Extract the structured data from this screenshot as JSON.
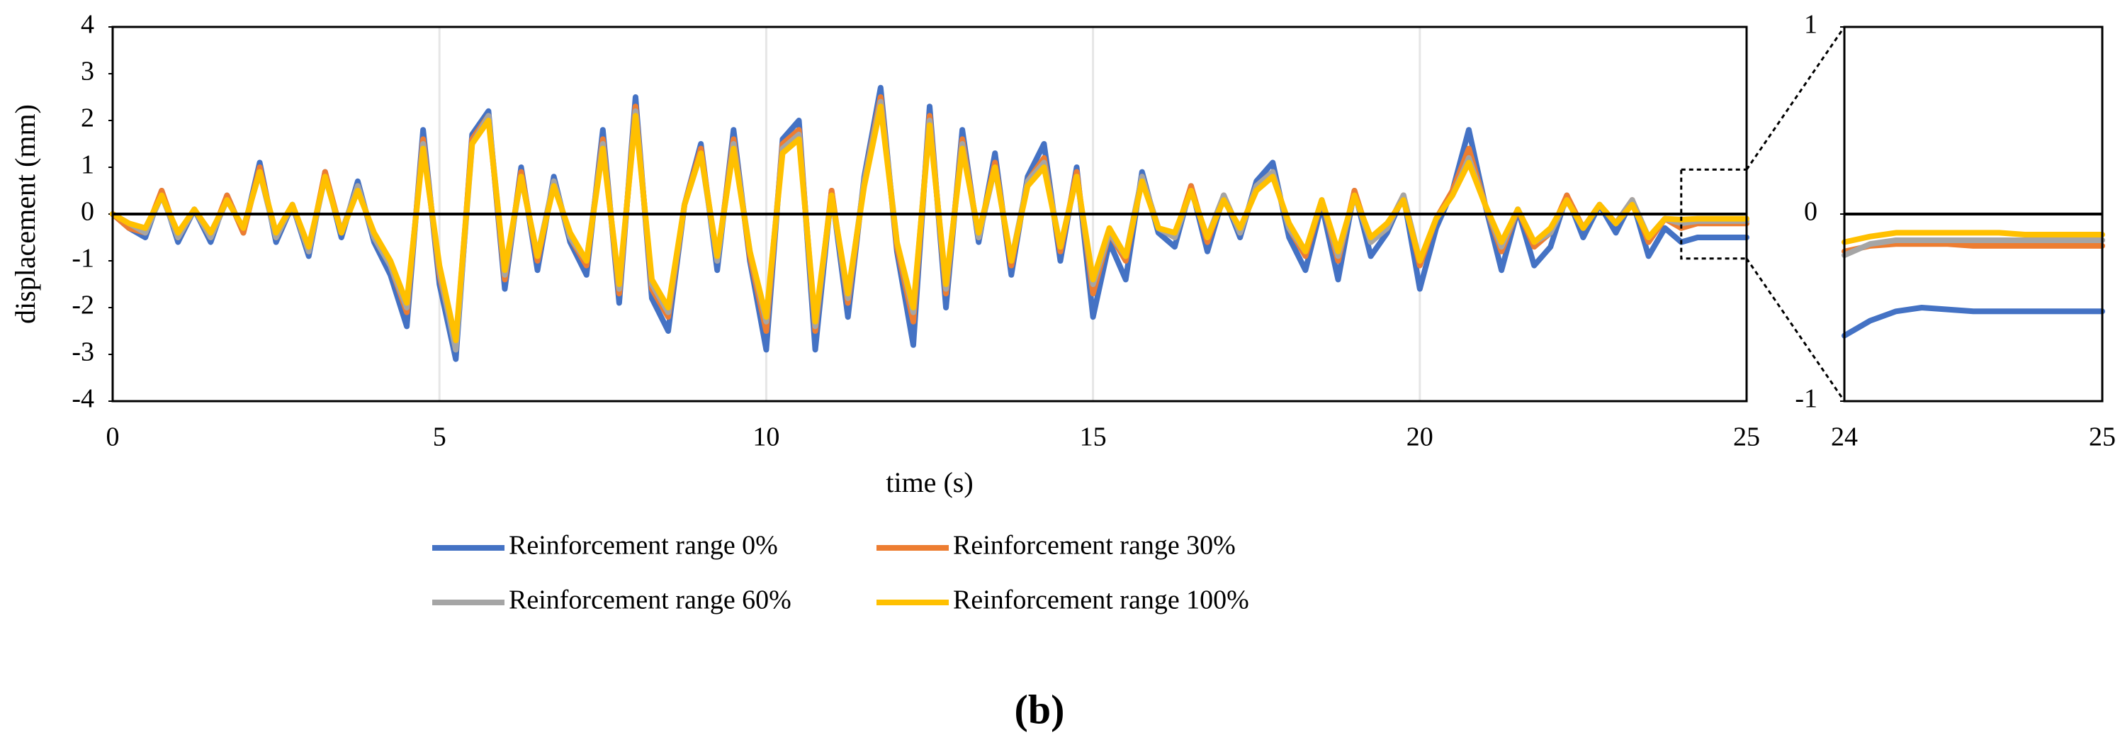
{
  "caption": "(b)",
  "chart_data": [
    {
      "type": "line",
      "xlabel": "time (s)",
      "ylabel": "displacement (mm)",
      "xlim": [
        0,
        25
      ],
      "ylim": [
        -4,
        4
      ],
      "xticks": [
        0,
        5,
        10,
        15,
        20,
        25
      ],
      "yticks": [
        -4,
        -3,
        -2,
        -1,
        0,
        1,
        2,
        3,
        4
      ],
      "grid": true,
      "zero_line": true,
      "legend": "bottom",
      "x": [
        0,
        0.25,
        0.5,
        0.75,
        1,
        1.25,
        1.5,
        1.75,
        2,
        2.25,
        2.5,
        2.75,
        3,
        3.25,
        3.5,
        3.75,
        4,
        4.25,
        4.5,
        4.75,
        5,
        5.25,
        5.5,
        5.75,
        6,
        6.25,
        6.5,
        6.75,
        7,
        7.25,
        7.5,
        7.75,
        8,
        8.25,
        8.5,
        8.75,
        9,
        9.25,
        9.5,
        9.75,
        10,
        10.25,
        10.5,
        10.75,
        11,
        11.25,
        11.5,
        11.75,
        12,
        12.25,
        12.5,
        12.75,
        13,
        13.25,
        13.5,
        13.75,
        14,
        14.25,
        14.5,
        14.75,
        15,
        15.25,
        15.5,
        15.75,
        16,
        16.25,
        16.5,
        16.75,
        17,
        17.25,
        17.5,
        17.75,
        18,
        18.25,
        18.5,
        18.75,
        19,
        19.25,
        19.5,
        19.75,
        20,
        20.25,
        20.5,
        20.75,
        21,
        21.25,
        21.5,
        21.75,
        22,
        22.25,
        22.5,
        22.75,
        23,
        23.25,
        23.5,
        23.75,
        24,
        24.25,
        24.5,
        24.75,
        25
      ],
      "series": [
        {
          "name": "Reinforcement range 0%",
          "color": "#4472c4",
          "values": [
            0,
            -0.3,
            -0.5,
            0.5,
            -0.6,
            0.1,
            -0.6,
            0.4,
            -0.4,
            1.1,
            -0.6,
            0.2,
            -0.9,
            0.9,
            -0.5,
            0.7,
            -0.6,
            -1.3,
            -2.4,
            1.8,
            -1.5,
            -3.1,
            1.7,
            2.2,
            -1.6,
            1.0,
            -1.2,
            0.8,
            -0.6,
            -1.3,
            1.8,
            -1.9,
            2.5,
            -1.8,
            -2.5,
            0.2,
            1.5,
            -1.2,
            1.8,
            -1.0,
            -2.9,
            1.6,
            2.0,
            -2.9,
            0.5,
            -2.2,
            0.8,
            2.7,
            -0.8,
            -2.8,
            2.3,
            -2.0,
            1.8,
            -0.6,
            1.3,
            -1.3,
            0.8,
            1.5,
            -1.0,
            1.0,
            -2.2,
            -0.6,
            -1.4,
            0.9,
            -0.4,
            -0.7,
            0.6,
            -0.8,
            0.4,
            -0.5,
            0.7,
            1.1,
            -0.5,
            -1.2,
            0.2,
            -1.4,
            0.5,
            -0.9,
            -0.4,
            0.4,
            -1.6,
            -0.3,
            0.5,
            1.8,
            0.2,
            -1.2,
            0.1,
            -1.1,
            -0.7,
            0.4,
            -0.5,
            0.2,
            -0.4,
            0.3,
            -0.9,
            -0.3,
            -0.6,
            -0.5,
            -0.5,
            -0.5,
            -0.5
          ]
        },
        {
          "name": "Reinforcement range 30%",
          "color": "#ed7d31",
          "values": [
            0,
            -0.3,
            -0.4,
            0.5,
            -0.5,
            0.1,
            -0.5,
            0.4,
            -0.4,
            1.0,
            -0.5,
            0.2,
            -0.8,
            0.9,
            -0.4,
            0.6,
            -0.5,
            -1.1,
            -2.1,
            1.6,
            -1.3,
            -2.8,
            1.6,
            2.1,
            -1.4,
            0.9,
            -1.0,
            0.7,
            -0.5,
            -1.1,
            1.6,
            -1.7,
            2.3,
            -1.6,
            -2.2,
            0.2,
            1.4,
            -1.0,
            1.6,
            -0.9,
            -2.5,
            1.5,
            1.8,
            -2.5,
            0.5,
            -1.9,
            0.7,
            2.5,
            -0.7,
            -2.3,
            2.1,
            -1.7,
            1.6,
            -0.5,
            1.1,
            -1.1,
            0.7,
            1.2,
            -0.8,
            0.9,
            -1.7,
            -0.4,
            -1.0,
            0.8,
            -0.3,
            -0.5,
            0.6,
            -0.6,
            0.4,
            -0.4,
            0.6,
            0.9,
            -0.3,
            -0.9,
            0.3,
            -1.0,
            0.5,
            -0.6,
            -0.3,
            0.4,
            -1.1,
            -0.1,
            0.5,
            1.4,
            0.2,
            -0.8,
            0.1,
            -0.7,
            -0.4,
            0.4,
            -0.3,
            0.2,
            -0.2,
            0.3,
            -0.6,
            -0.1,
            -0.3,
            -0.2,
            -0.2,
            -0.2,
            -0.2
          ]
        },
        {
          "name": "Reinforcement range 60%",
          "color": "#a5a5a5",
          "values": [
            0,
            -0.2,
            -0.4,
            0.4,
            -0.5,
            0.1,
            -0.5,
            0.3,
            -0.3,
            0.9,
            -0.5,
            0.2,
            -0.8,
            0.8,
            -0.4,
            0.6,
            -0.5,
            -1.1,
            -2.0,
            1.5,
            -1.2,
            -2.9,
            1.5,
            2.1,
            -1.3,
            0.8,
            -0.9,
            0.7,
            -0.5,
            -1.0,
            1.5,
            -1.6,
            2.2,
            -1.5,
            -2.1,
            0.2,
            1.3,
            -1.0,
            1.5,
            -0.8,
            -2.3,
            1.4,
            1.7,
            -2.4,
            0.4,
            -1.8,
            0.7,
            2.4,
            -0.6,
            -2.1,
            2.0,
            -1.6,
            1.5,
            -0.5,
            1.0,
            -1.0,
            0.7,
            1.1,
            -0.7,
            0.8,
            -1.5,
            -0.4,
            -0.9,
            0.8,
            -0.3,
            -0.5,
            0.5,
            -0.5,
            0.4,
            -0.4,
            0.6,
            0.9,
            -0.3,
            -0.8,
            0.3,
            -0.9,
            0.4,
            -0.6,
            -0.3,
            0.4,
            -1.0,
            -0.1,
            0.4,
            1.2,
            0.2,
            -0.7,
            0.1,
            -0.6,
            -0.4,
            0.3,
            -0.3,
            0.2,
            -0.2,
            0.3,
            -0.5,
            -0.1,
            -0.2,
            -0.15,
            -0.15,
            -0.15,
            -0.15
          ]
        },
        {
          "name": "Reinforcement range 100%",
          "color": "#ffc000",
          "values": [
            0,
            -0.2,
            -0.3,
            0.4,
            -0.4,
            0.1,
            -0.4,
            0.3,
            -0.3,
            0.9,
            -0.4,
            0.2,
            -0.7,
            0.8,
            -0.4,
            0.5,
            -0.4,
            -1.0,
            -1.9,
            1.4,
            -1.1,
            -2.7,
            1.5,
            2.0,
            -1.2,
            0.8,
            -0.9,
            0.6,
            -0.4,
            -1.0,
            1.4,
            -1.5,
            2.1,
            -1.4,
            -2.0,
            0.2,
            1.3,
            -0.9,
            1.4,
            -0.8,
            -2.2,
            1.3,
            1.6,
            -2.3,
            0.4,
            -1.7,
            0.6,
            2.3,
            -0.6,
            -2.0,
            1.9,
            -1.5,
            1.4,
            -0.4,
            1.0,
            -1.0,
            0.6,
            1.0,
            -0.7,
            0.8,
            -1.4,
            -0.3,
            -0.9,
            0.7,
            -0.3,
            -0.4,
            0.5,
            -0.5,
            0.3,
            -0.3,
            0.5,
            0.8,
            -0.2,
            -0.8,
            0.3,
            -0.8,
            0.4,
            -0.5,
            -0.2,
            0.3,
            -1.0,
            -0.1,
            0.4,
            1.1,
            0.2,
            -0.6,
            0.1,
            -0.6,
            -0.3,
            0.3,
            -0.3,
            0.2,
            -0.2,
            0.2,
            -0.5,
            -0.1,
            -0.12,
            -0.1,
            -0.1,
            -0.1,
            -0.1
          ]
        }
      ]
    },
    {
      "type": "line",
      "xlim": [
        24,
        25
      ],
      "ylim": [
        -1,
        1
      ],
      "xticks": [
        24,
        25
      ],
      "yticks": [
        -1,
        0,
        1
      ],
      "grid": false,
      "zero_line": true,
      "x": [
        24,
        24.1,
        24.2,
        24.3,
        24.4,
        24.5,
        24.6,
        24.7,
        24.8,
        24.9,
        25
      ],
      "series": [
        {
          "color": "#4472c4",
          "values": [
            -0.65,
            -0.57,
            -0.52,
            -0.5,
            -0.51,
            -0.52,
            -0.52,
            -0.52,
            -0.52,
            -0.52,
            -0.52
          ]
        },
        {
          "color": "#ed7d31",
          "values": [
            -0.2,
            -0.17,
            -0.16,
            -0.16,
            -0.16,
            -0.17,
            -0.17,
            -0.17,
            -0.17,
            -0.17,
            -0.17
          ]
        },
        {
          "color": "#a5a5a5",
          "values": [
            -0.22,
            -0.16,
            -0.14,
            -0.14,
            -0.14,
            -0.14,
            -0.14,
            -0.14,
            -0.14,
            -0.14,
            -0.14
          ]
        },
        {
          "color": "#ffc000",
          "values": [
            -0.15,
            -0.12,
            -0.1,
            -0.1,
            -0.1,
            -0.1,
            -0.1,
            -0.11,
            -0.11,
            -0.11,
            -0.11
          ]
        }
      ]
    }
  ]
}
